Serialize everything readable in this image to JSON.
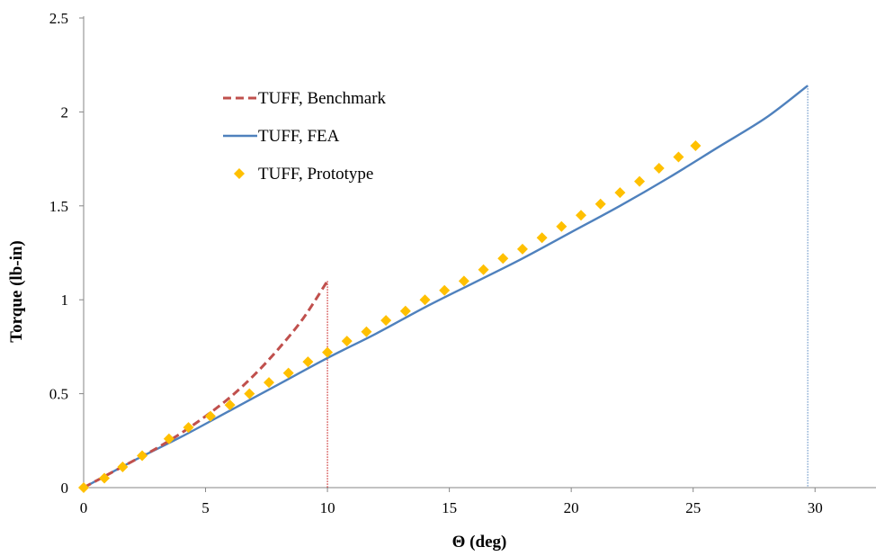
{
  "chart_data": {
    "type": "line",
    "xlabel": "Θ (deg)",
    "ylabel": "Torque  (lb-in)",
    "xlim": [
      0,
      32.5
    ],
    "ylim": [
      0,
      2.5
    ],
    "xticks": [
      0,
      5,
      10,
      15,
      20,
      25,
      30
    ],
    "yticks": [
      0,
      0.5,
      1,
      1.5,
      2,
      2.5
    ],
    "grid": false,
    "legend_position": "top-left",
    "series": [
      {
        "name": "TUFF, Benchmark",
        "style": "dashed-line",
        "color": "#C0504D",
        "x": [
          0,
          1,
          2,
          3,
          4,
          5,
          6,
          7,
          8,
          9,
          10
        ],
        "y": [
          0,
          0.07,
          0.14,
          0.21,
          0.29,
          0.38,
          0.48,
          0.6,
          0.74,
          0.9,
          1.1
        ]
      },
      {
        "name": "TUFF, FEA",
        "style": "solid-line",
        "color": "#4F81BD",
        "x": [
          0,
          2,
          4,
          6,
          8,
          10,
          12,
          14,
          16,
          18,
          20,
          22,
          24,
          26,
          28,
          29.7
        ],
        "y": [
          0,
          0.14,
          0.27,
          0.41,
          0.55,
          0.69,
          0.82,
          0.96,
          1.09,
          1.22,
          1.36,
          1.5,
          1.65,
          1.81,
          1.97,
          2.14
        ]
      },
      {
        "name": "TUFF, Prototype",
        "style": "diamond-markers",
        "color": "#FFC000",
        "x": [
          0,
          0.85,
          1.6,
          2.4,
          3.5,
          4.3,
          5.2,
          6.0,
          6.8,
          7.6,
          8.4,
          9.2,
          10.0,
          10.8,
          11.6,
          12.4,
          13.2,
          14.0,
          14.8,
          15.6,
          16.4,
          17.2,
          18.0,
          18.8,
          19.6,
          20.4,
          21.2,
          22.0,
          22.8,
          23.6,
          24.4,
          25.1
        ],
        "y": [
          0,
          0.05,
          0.11,
          0.17,
          0.26,
          0.32,
          0.38,
          0.44,
          0.5,
          0.56,
          0.61,
          0.67,
          0.72,
          0.78,
          0.83,
          0.89,
          0.94,
          1.0,
          1.05,
          1.1,
          1.16,
          1.22,
          1.27,
          1.33,
          1.39,
          1.45,
          1.51,
          1.57,
          1.63,
          1.7,
          1.76,
          1.82
        ]
      }
    ],
    "drop_lines": [
      {
        "series": "TUFF, Benchmark",
        "x": 10,
        "y": 1.1,
        "color": "#C00000"
      },
      {
        "series": "TUFF, FEA",
        "x": 29.7,
        "y": 2.14,
        "color": "#4F81BD"
      }
    ]
  }
}
